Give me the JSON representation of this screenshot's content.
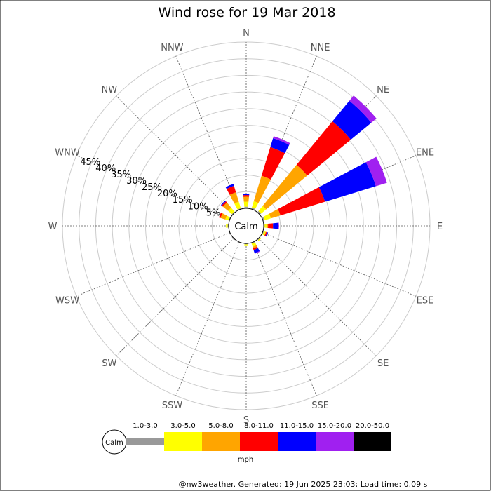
{
  "chart_data": {
    "type": "wind-rose",
    "title": "Wind rose for 19 Mar 2018",
    "directions": [
      "N",
      "NNE",
      "NE",
      "ENE",
      "E",
      "ESE",
      "SE",
      "SSE",
      "S",
      "SSW",
      "SW",
      "WSW",
      "W",
      "WNW",
      "NW",
      "NNW"
    ],
    "ring_labels": [
      "5%",
      "10%",
      "15%",
      "20%",
      "25%",
      "30%",
      "35%",
      "40%",
      "45%"
    ],
    "ring_max": 50,
    "calm_label": "Calm",
    "speed_unit": "mph",
    "bins": [
      {
        "label": "1.0-3.0",
        "color": "#999999"
      },
      {
        "label": "3.0-5.0",
        "color": "#ffff00"
      },
      {
        "label": "5.0-8.0",
        "color": "#ffa500"
      },
      {
        "label": "8.0-11.0",
        "color": "#ff0000"
      },
      {
        "label": "11.0-15.0",
        "color": "#0000ff"
      },
      {
        "label": "15.0-20.0",
        "color": "#a020f0"
      },
      {
        "label": "20.0-50.0",
        "color": "#000000"
      }
    ],
    "frequencies": {
      "N": [
        0.5,
        1.5,
        1.5,
        0.5,
        0.3,
        0,
        0
      ],
      "NNE": [
        0.5,
        2.0,
        8.0,
        9.0,
        2.8,
        0.6,
        0
      ],
      "NE": [
        0.5,
        2.0,
        16.0,
        17.0,
        8.0,
        2.0,
        0
      ],
      "ENE": [
        0.5,
        2.0,
        3.0,
        14.0,
        16.0,
        3.5,
        0
      ],
      "E": [
        0.3,
        0.5,
        0.5,
        1.5,
        1.5,
        0.3,
        0
      ],
      "ESE": [
        0.3,
        0.5,
        0.2,
        0.3,
        0.3,
        0,
        0
      ],
      "SE": [
        0.3,
        0.3,
        0,
        0,
        0,
        0,
        0
      ],
      "SSE": [
        0.3,
        1.0,
        0.5,
        0.5,
        1.0,
        0.2,
        0
      ],
      "S": [
        0.3,
        0.5,
        0,
        0,
        0,
        0,
        0
      ],
      "SSW": [
        0.3,
        0,
        0,
        0,
        0,
        0,
        0
      ],
      "SW": [
        0.3,
        0,
        0,
        0,
        0,
        0,
        0
      ],
      "WSW": [
        0.3,
        0,
        0,
        0,
        0,
        0,
        0
      ],
      "W": [
        0.3,
        0.5,
        0,
        0,
        0,
        0,
        0
      ],
      "WNW": [
        0.3,
        1.0,
        1.5,
        0.5,
        0,
        0,
        0
      ],
      "NW": [
        0.3,
        1.5,
        2.0,
        0.5,
        0.3,
        0,
        0
      ],
      "NNW": [
        0.3,
        2.0,
        3.0,
        2.0,
        0.6,
        0,
        0
      ]
    }
  },
  "footer": "@nw3weather. Generated: 19 Jun 2025 23:03; Load time: 0.09 s"
}
